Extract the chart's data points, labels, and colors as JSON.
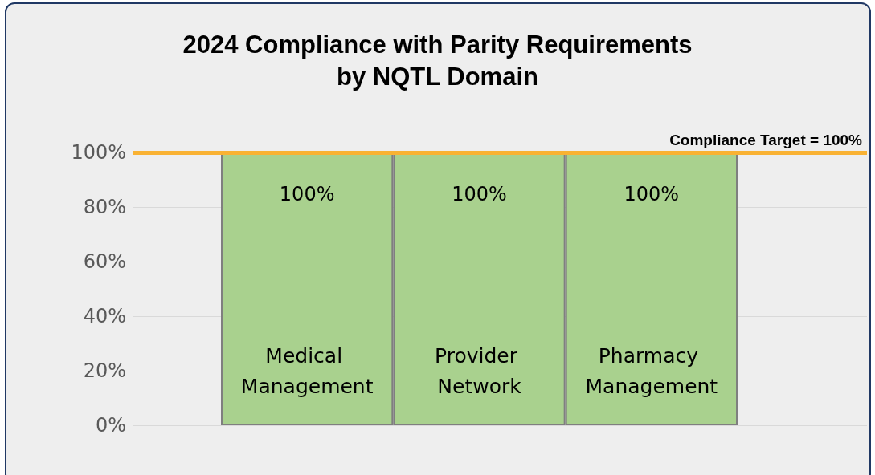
{
  "chart_data": {
    "type": "bar",
    "title": "2024 Compliance with Parity Requirements\nby NQTL Domain",
    "categories": [
      "Medical Management",
      "Provider Network",
      "Pharmacy Management"
    ],
    "values": [
      100,
      100,
      100
    ],
    "color": "#a9d18e",
    "value_labels": [
      "100%",
      "100%",
      "100%"
    ],
    "ylim": [
      0,
      100
    ],
    "yticks": [
      {
        "value": 0,
        "label": "0%"
      },
      {
        "value": 20,
        "label": "20%"
      },
      {
        "value": 40,
        "label": "40%"
      },
      {
        "value": 60,
        "label": "60%"
      },
      {
        "value": 80,
        "label": "80%"
      },
      {
        "value": 100,
        "label": "100%"
      }
    ],
    "grid": "y",
    "ref_lines": [
      {
        "axis": "y",
        "value": 100,
        "label": "Compliance Target = 100%",
        "color": "#f9b233"
      }
    ]
  }
}
